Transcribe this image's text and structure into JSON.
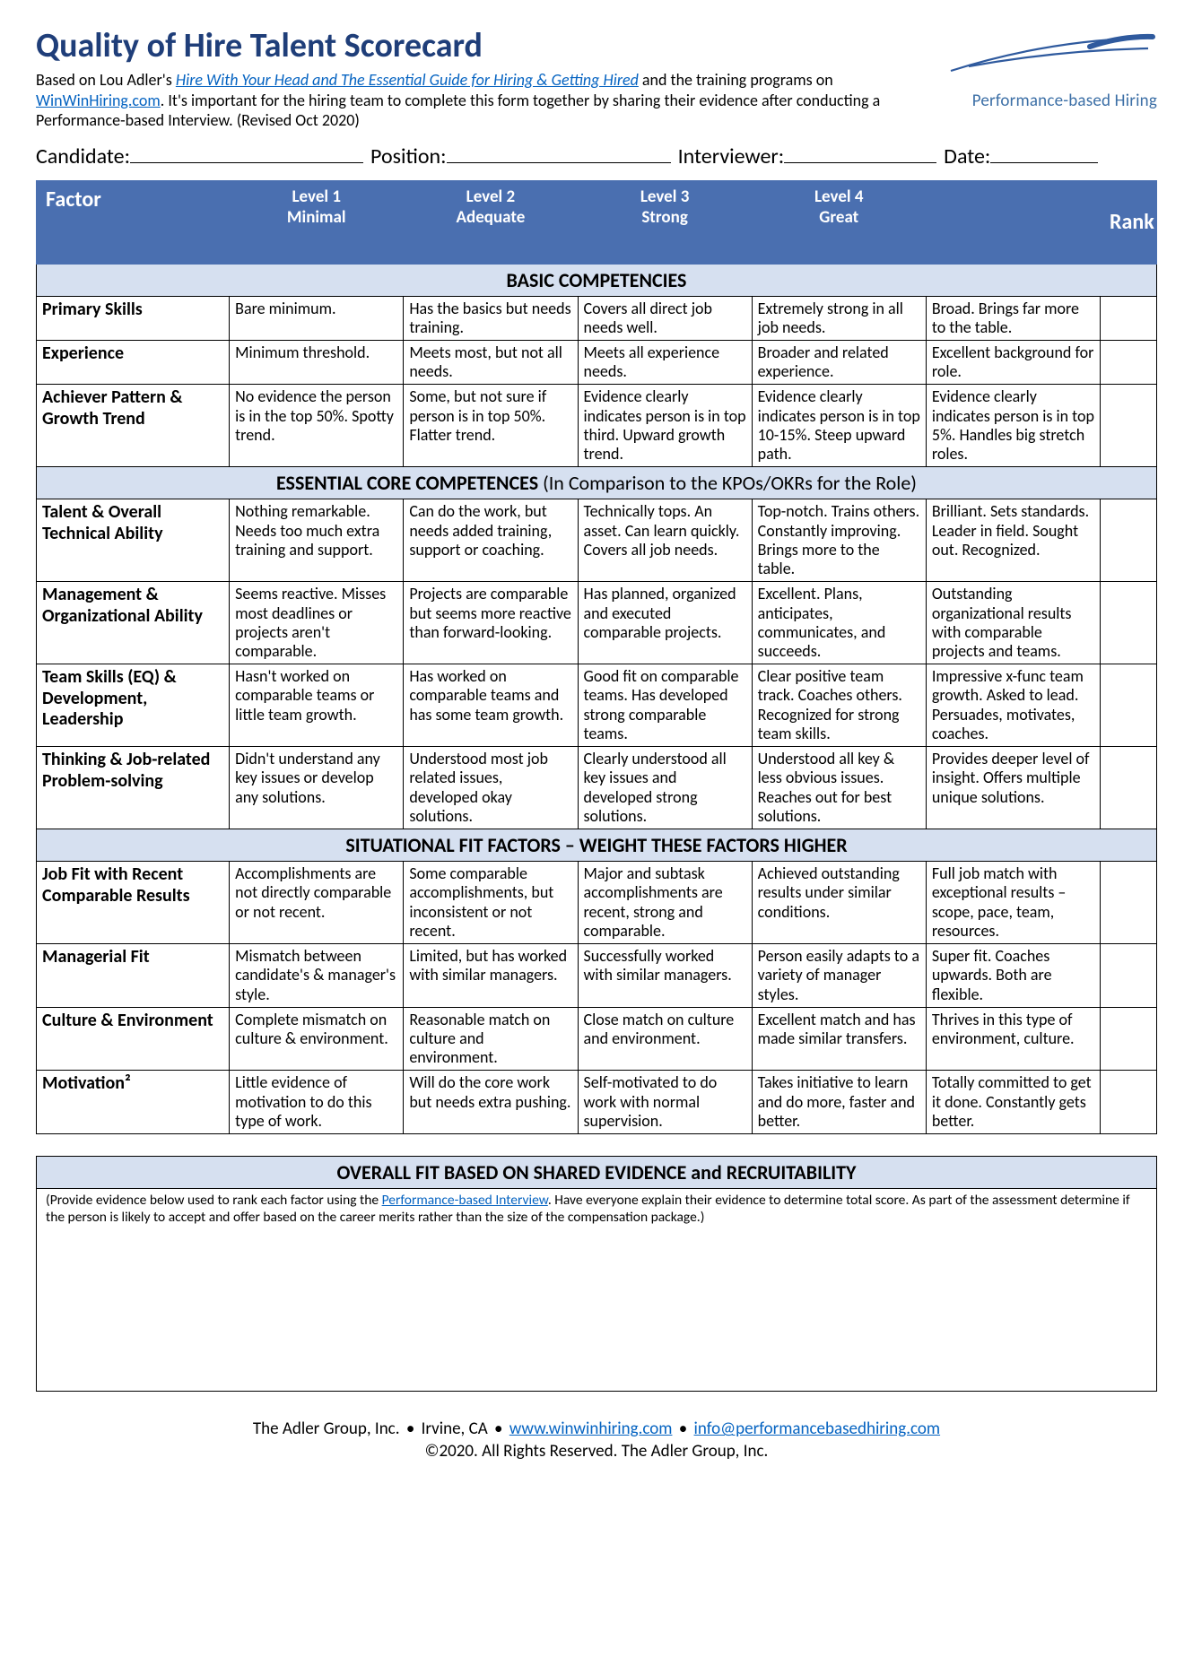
{
  "title": "Quality of Hire Talent Scorecard",
  "intro": {
    "prefix": "Based on Lou Adler's ",
    "book_link_text": "Hire With Your Head and The Essential Guide for Hiring & Getting Hired",
    "mid1": " and the training programs on ",
    "site_link_text": "WinWinHiring.com",
    "suffix": ". It's important for the hiring team to complete this form together by sharing their evidence after conducting a Performance-based Interview. (Revised Oct 2020)"
  },
  "logo_text": "Performance-based Hiring",
  "form": {
    "candidate": "Candidate:",
    "position": "Position:",
    "interviewer": "Interviewer:",
    "date": "Date:"
  },
  "header": {
    "factor": "Factor",
    "levels": [
      {
        "num": "Level 1",
        "name": "Minimal"
      },
      {
        "num": "Level 2",
        "name": "Adequate"
      },
      {
        "num": "Level 3",
        "name": "Strong"
      },
      {
        "num": "Level 4",
        "name": "Great"
      }
    ],
    "level5_blank": "",
    "rank": "Rank"
  },
  "sections": [
    {
      "title": "BASIC COMPETENCIES",
      "subtitle": "",
      "rows": [
        {
          "factor": "Primary Skills",
          "cells": [
            "Bare minimum.",
            "Has the basics but needs training.",
            "Covers all direct job needs well.",
            "Extremely strong in all job needs.",
            "Broad. Brings far more to the table."
          ]
        },
        {
          "factor": "Experience",
          "cells": [
            "Minimum threshold.",
            "Meets most, but not all needs.",
            "Meets all experience needs.",
            "Broader and related experience.",
            "Excellent background for role."
          ]
        },
        {
          "factor": "Achiever Pattern & Growth Trend",
          "cells": [
            "No evidence the person is in the top 50%. Spotty trend.",
            "Some, but not sure if person is in top 50%. Flatter trend.",
            "Evidence clearly indicates person is in top third. Upward growth trend.",
            "Evidence clearly indicates person is in top 10-15%. Steep upward path.",
            "Evidence clearly indicates person is in top 5%. Handles big stretch roles."
          ]
        }
      ]
    },
    {
      "title": "ESSENTIAL CORE COMPETENCES ",
      "subtitle": "(In Comparison to the KPOs/OKRs for the Role)",
      "rows": [
        {
          "factor": "Talent & Overall Technical Ability",
          "cells": [
            "Nothing remarkable. Needs too much extra training and support.",
            "Can do the work, but needs added training, support or coaching.",
            "Technically tops. An asset. Can learn quickly. Covers all job needs.",
            "Top-notch. Trains others. Constantly improving. Brings more to the table.",
            "Brilliant. Sets standards. Leader in field. Sought out. Recognized."
          ]
        },
        {
          "factor": "Management & Organizational Ability",
          "cells": [
            "Seems reactive. Misses most deadlines or projects aren't comparable.",
            "Projects are comparable but seems more reactive than forward-looking.",
            "Has planned, organized and executed comparable projects.",
            "Excellent. Plans, anticipates, communicates, and succeeds.",
            "Outstanding organizational results with comparable projects and teams."
          ]
        },
        {
          "factor": "Team Skills (EQ) & Development, Leadership",
          "cells": [
            "Hasn't worked on comparable teams or little team growth.",
            "Has worked on comparable teams and has some team growth.",
            "Good fit on comparable teams. Has developed strong comparable teams.",
            "Clear positive team track. Coaches others. Recognized for strong team skills.",
            "Impressive x-func team growth. Asked to lead. Persuades, motivates, coaches."
          ]
        },
        {
          "factor": "Thinking & Job-related Problem-solving",
          "cells": [
            "Didn't understand any key issues or develop any solutions.",
            "Understood most job related issues, developed okay solutions.",
            "Clearly understood all key issues and developed strong solutions.",
            "Understood all key & less obvious issues. Reaches out for best solutions.",
            "Provides deeper level of insight. Offers multiple unique solutions."
          ]
        }
      ]
    },
    {
      "title": "SITUATIONAL FIT FACTORS – WEIGHT THESE FACTORS HIGHER",
      "subtitle": "",
      "rows": [
        {
          "factor": "Job Fit with Recent Comparable Results",
          "cells": [
            "Accomplishments are not directly comparable or not recent.",
            "Some comparable accomplishments, but inconsistent or not recent.",
            "Major and subtask accomplishments are recent, strong and comparable.",
            "Achieved outstanding results under similar conditions.",
            "Full job match with exceptional results – scope, pace, team, resources."
          ]
        },
        {
          "factor": "Managerial Fit",
          "cells": [
            "Mismatch between candidate's & manager's style.",
            "Limited, but has worked with similar managers.",
            "Successfully worked with similar managers.",
            "Person easily adapts to a variety of manager styles.",
            "Super fit. Coaches upwards. Both are flexible."
          ]
        },
        {
          "factor": "Culture & Environment",
          "cells": [
            "Complete mismatch on culture & environment.",
            "Reasonable match on culture and environment.",
            "Close match on culture and environment.",
            "Excellent match and has made similar transfers.",
            "Thrives in this type of environment, culture."
          ]
        },
        {
          "factor": "Motivation²",
          "cells": [
            "Little evidence of motivation to do this type of work.",
            "Will do the core work but needs extra pushing.",
            "Self-motivated to do work with normal supervision.",
            "Takes initiative to learn and do more, faster and better.",
            "Totally committed to get it done. Constantly gets better."
          ]
        }
      ]
    }
  ],
  "overall": {
    "title": "OVERALL FIT BASED ON SHARED EVIDENCE and RECRUITABILITY",
    "instr_pre": "(Provide evidence below used to rank each factor using the ",
    "instr_link": "Performance-based Interview",
    "instr_post": ". Have everyone explain their evidence to determine total score. As part of the assessment determine if the person is likely to accept and offer based on the career merits rather than the size of the compensation package.)"
  },
  "footer": {
    "line1_pre": "The Adler Group, Inc. ",
    "bullet": "•",
    "loc": " Irvine, CA ",
    "site": "www.winwinhiring.com",
    "email": "info@performancebasedhiring.com",
    "line2": "©2020. All Rights Reserved. The Adler Group, Inc."
  },
  "colors": {
    "title": "#1f3e79",
    "header_bg": "#4a6fb0",
    "section_bg": "#d6e0f0",
    "link": "#0563c1"
  }
}
